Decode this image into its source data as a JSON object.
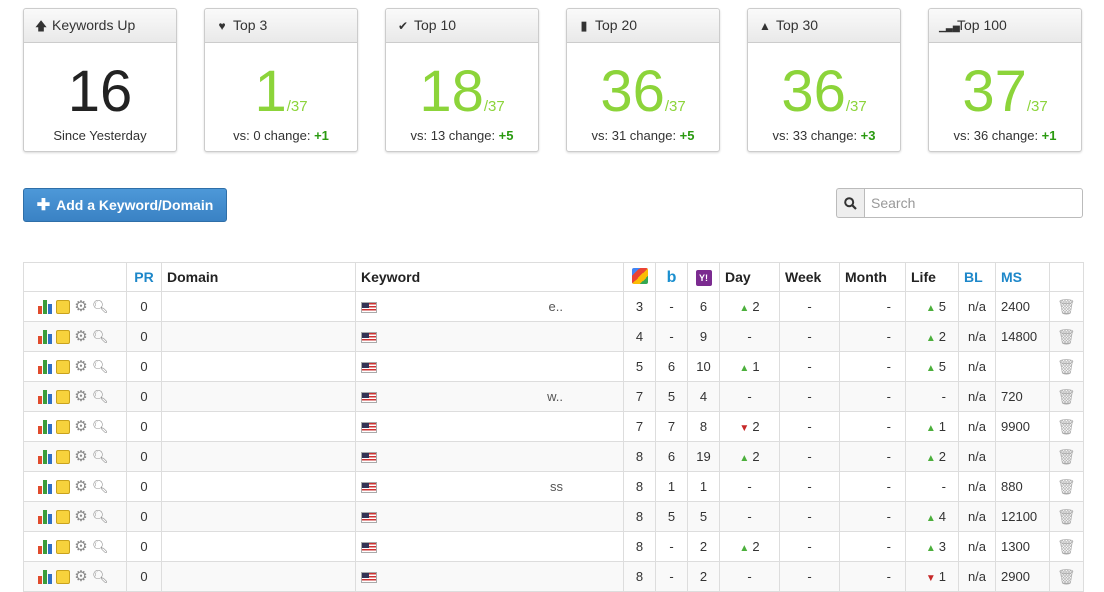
{
  "cards": [
    {
      "title": "Keywords Up",
      "icon": "arrow-up-icon",
      "value": "16",
      "denominator": "",
      "footer_text": "Since Yesterday",
      "footer_change": ""
    },
    {
      "title": "Top 3",
      "icon": "heart-icon",
      "value": "1",
      "denominator": "/37",
      "footer_text": "vs: 0 change: ",
      "footer_change": "+1"
    },
    {
      "title": "Top 10",
      "icon": "checkmark-icon",
      "value": "18",
      "denominator": "/37",
      "footer_text": "vs: 13 change: ",
      "footer_change": "+5"
    },
    {
      "title": "Top 20",
      "icon": "bookmark-icon",
      "value": "36",
      "denominator": "/37",
      "footer_text": "vs: 31 change: ",
      "footer_change": "+5"
    },
    {
      "title": "Top 30",
      "icon": "road-icon",
      "value": "36",
      "denominator": "/37",
      "footer_text": "vs: 33 change: ",
      "footer_change": "+3"
    },
    {
      "title": "Top 100",
      "icon": "signal-icon",
      "value": "37",
      "denominator": "/37",
      "footer_text": "vs: 36 change: ",
      "footer_change": "+1"
    }
  ],
  "toolbar": {
    "add_label": "Add a Keyword/Domain",
    "search_placeholder": "Search"
  },
  "table": {
    "headers": {
      "pr": "PR",
      "domain": "Domain",
      "keyword": "Keyword",
      "day": "Day",
      "week": "Week",
      "month": "Month",
      "life": "Life",
      "bl": "BL",
      "ms": "MS"
    },
    "rows": [
      {
        "pr": "0",
        "kw_tail": "e..",
        "g": "3",
        "b": "-",
        "y": "6",
        "day": "2",
        "day_dir": "up",
        "week": "-",
        "month": "-",
        "life": "5",
        "life_dir": "up",
        "bl": "n/a",
        "ms": "2400"
      },
      {
        "pr": "0",
        "kw_tail": "",
        "g": "4",
        "b": "-",
        "y": "9",
        "day": "-",
        "day_dir": "",
        "week": "-",
        "month": "-",
        "life": "2",
        "life_dir": "up",
        "bl": "n/a",
        "ms": "14800"
      },
      {
        "pr": "0",
        "kw_tail": "",
        "g": "5",
        "b": "6",
        "y": "10",
        "day": "1",
        "day_dir": "up",
        "week": "-",
        "month": "-",
        "life": "5",
        "life_dir": "up",
        "bl": "n/a",
        "ms": ""
      },
      {
        "pr": "0",
        "kw_tail": "w..",
        "g": "7",
        "b": "5",
        "y": "4",
        "day": "-",
        "day_dir": "",
        "week": "-",
        "month": "-",
        "life": "-",
        "life_dir": "",
        "bl": "n/a",
        "ms": "720"
      },
      {
        "pr": "0",
        "kw_tail": "",
        "g": "7",
        "b": "7",
        "y": "8",
        "day": "2",
        "day_dir": "down",
        "week": "-",
        "month": "-",
        "life": "1",
        "life_dir": "up",
        "bl": "n/a",
        "ms": "9900"
      },
      {
        "pr": "0",
        "kw_tail": "",
        "g": "8",
        "b": "6",
        "y": "19",
        "day": "2",
        "day_dir": "up",
        "week": "-",
        "month": "-",
        "life": "2",
        "life_dir": "up",
        "bl": "n/a",
        "ms": ""
      },
      {
        "pr": "0",
        "kw_tail": "ss",
        "g": "8",
        "b": "1",
        "y": "1",
        "day": "-",
        "day_dir": "",
        "week": "-",
        "month": "-",
        "life": "-",
        "life_dir": "",
        "bl": "n/a",
        "ms": "880"
      },
      {
        "pr": "0",
        "kw_tail": "",
        "g": "8",
        "b": "5",
        "y": "5",
        "day": "-",
        "day_dir": "",
        "week": "-",
        "month": "-",
        "life": "4",
        "life_dir": "up",
        "bl": "n/a",
        "ms": "12100"
      },
      {
        "pr": "0",
        "kw_tail": "",
        "g": "8",
        "b": "-",
        "y": "2",
        "day": "2",
        "day_dir": "up",
        "week": "-",
        "month": "-",
        "life": "3",
        "life_dir": "up",
        "bl": "n/a",
        "ms": "1300"
      },
      {
        "pr": "0",
        "kw_tail": "",
        "g": "8",
        "b": "-",
        "y": "2",
        "day": "-",
        "day_dir": "",
        "week": "-",
        "month": "-",
        "life": "1",
        "life_dir": "down",
        "bl": "n/a",
        "ms": "2900"
      }
    ]
  }
}
